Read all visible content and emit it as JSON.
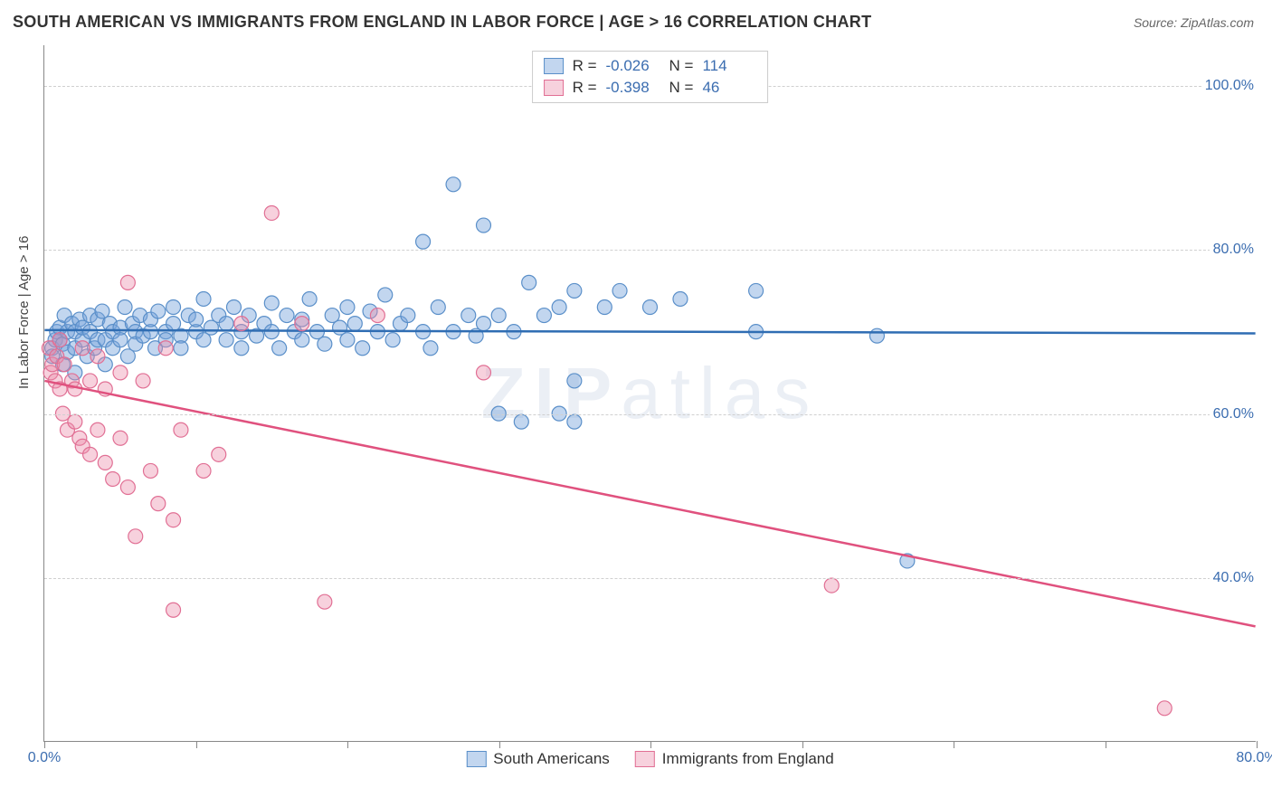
{
  "header": {
    "title": "SOUTH AMERICAN VS IMMIGRANTS FROM ENGLAND IN LABOR FORCE | AGE > 16 CORRELATION CHART",
    "source": "Source: ZipAtlas.com"
  },
  "watermark": "ZIPatlas",
  "chart": {
    "type": "scatter",
    "ylabel": "In Labor Force | Age > 16",
    "background_color": "#ffffff",
    "grid_color": "#d0d0d0",
    "axis_color": "#888888",
    "tick_label_color": "#3b6db0",
    "text_color": "#333333",
    "marker_radius": 8,
    "marker_stroke_width": 1.2,
    "line_width": 2.5,
    "xlim": [
      0,
      80
    ],
    "ylim": [
      20,
      105
    ],
    "xticks": [
      0,
      10,
      20,
      30,
      40,
      50,
      60,
      70,
      80
    ],
    "xtick_labels": {
      "0": "0.0%",
      "80": "80.0%"
    },
    "yticks": [
      40,
      60,
      80,
      100
    ],
    "ytick_labels": {
      "40": "40.0%",
      "60": "60.0%",
      "80": "80.0%",
      "100": "100.0%"
    },
    "series": [
      {
        "name": "South Americans",
        "fill_color": "rgba(120,165,220,0.45)",
        "stroke_color": "#5a8fc9",
        "line_color": "#2f6db3",
        "R": "-0.026",
        "N": "114",
        "regression": {
          "x1": 0,
          "y1": 70.2,
          "x2": 80,
          "y2": 69.8
        },
        "points": [
          [
            0.5,
            68
          ],
          [
            0.5,
            67
          ],
          [
            0.7,
            69
          ],
          [
            0.8,
            70
          ],
          [
            1,
            70.5
          ],
          [
            1,
            69
          ],
          [
            1.2,
            68.5
          ],
          [
            1.2,
            66
          ],
          [
            1.3,
            72
          ],
          [
            1.5,
            70
          ],
          [
            1.5,
            67.5
          ],
          [
            1.8,
            71
          ],
          [
            2,
            70
          ],
          [
            2,
            68
          ],
          [
            2,
            65
          ],
          [
            2.3,
            71.5
          ],
          [
            2.5,
            69
          ],
          [
            2.5,
            70.5
          ],
          [
            2.8,
            67
          ],
          [
            3,
            70
          ],
          [
            3,
            72
          ],
          [
            3.3,
            68
          ],
          [
            3.5,
            69
          ],
          [
            3.5,
            71.5
          ],
          [
            3.8,
            72.5
          ],
          [
            4,
            69
          ],
          [
            4,
            66
          ],
          [
            4.3,
            71
          ],
          [
            4.5,
            70
          ],
          [
            4.5,
            68
          ],
          [
            5,
            70.5
          ],
          [
            5,
            69
          ],
          [
            5.3,
            73
          ],
          [
            5.5,
            67
          ],
          [
            5.8,
            71
          ],
          [
            6,
            70
          ],
          [
            6,
            68.5
          ],
          [
            6.3,
            72
          ],
          [
            6.5,
            69.5
          ],
          [
            7,
            70
          ],
          [
            7,
            71.5
          ],
          [
            7.3,
            68
          ],
          [
            7.5,
            72.5
          ],
          [
            8,
            70
          ],
          [
            8,
            69
          ],
          [
            8.5,
            71
          ],
          [
            8.5,
            73
          ],
          [
            9,
            69.5
          ],
          [
            9,
            68
          ],
          [
            9.5,
            72
          ],
          [
            10,
            70
          ],
          [
            10,
            71.5
          ],
          [
            10.5,
            69
          ],
          [
            10.5,
            74
          ],
          [
            11,
            70.5
          ],
          [
            11.5,
            72
          ],
          [
            12,
            69
          ],
          [
            12,
            71
          ],
          [
            12.5,
            73
          ],
          [
            13,
            68
          ],
          [
            13,
            70
          ],
          [
            13.5,
            72
          ],
          [
            14,
            69.5
          ],
          [
            14.5,
            71
          ],
          [
            15,
            70
          ],
          [
            15,
            73.5
          ],
          [
            15.5,
            68
          ],
          [
            16,
            72
          ],
          [
            16.5,
            70
          ],
          [
            17,
            69
          ],
          [
            17,
            71.5
          ],
          [
            17.5,
            74
          ],
          [
            18,
            70
          ],
          [
            18.5,
            68.5
          ],
          [
            19,
            72
          ],
          [
            19.5,
            70.5
          ],
          [
            20,
            69
          ],
          [
            20,
            73
          ],
          [
            20.5,
            71
          ],
          [
            21,
            68
          ],
          [
            21.5,
            72.5
          ],
          [
            22,
            70
          ],
          [
            22.5,
            74.5
          ],
          [
            23,
            69
          ],
          [
            23.5,
            71
          ],
          [
            24,
            72
          ],
          [
            25,
            70
          ],
          [
            25,
            81
          ],
          [
            25.5,
            68
          ],
          [
            26,
            73
          ],
          [
            27,
            88
          ],
          [
            27,
            70
          ],
          [
            28,
            72
          ],
          [
            28.5,
            69.5
          ],
          [
            29,
            71
          ],
          [
            29,
            83
          ],
          [
            30,
            60
          ],
          [
            30,
            72
          ],
          [
            31,
            70
          ],
          [
            31.5,
            59
          ],
          [
            32,
            76
          ],
          [
            33,
            72
          ],
          [
            34,
            73
          ],
          [
            34,
            60
          ],
          [
            35,
            64
          ],
          [
            35,
            59
          ],
          [
            35,
            75
          ],
          [
            37,
            73
          ],
          [
            38,
            75
          ],
          [
            40,
            73
          ],
          [
            42,
            74
          ],
          [
            47,
            75
          ],
          [
            47,
            70
          ],
          [
            55,
            69.5
          ],
          [
            57,
            42
          ]
        ]
      },
      {
        "name": "Immigrants from England",
        "fill_color": "rgba(235,140,170,0.4)",
        "stroke_color": "#e16f94",
        "line_color": "#e0517e",
        "R": "-0.398",
        "N": "46",
        "regression": {
          "x1": 0,
          "y1": 64,
          "x2": 80,
          "y2": 34
        },
        "points": [
          [
            0.3,
            68
          ],
          [
            0.4,
            65
          ],
          [
            0.5,
            66
          ],
          [
            0.7,
            64
          ],
          [
            0.8,
            67
          ],
          [
            1,
            69
          ],
          [
            1,
            63
          ],
          [
            1.2,
            60
          ],
          [
            1.3,
            66
          ],
          [
            1.5,
            58
          ],
          [
            1.8,
            64
          ],
          [
            2,
            59
          ],
          [
            2,
            63
          ],
          [
            2.3,
            57
          ],
          [
            2.5,
            68
          ],
          [
            2.5,
            56
          ],
          [
            3,
            64
          ],
          [
            3,
            55
          ],
          [
            3.5,
            58
          ],
          [
            3.5,
            67
          ],
          [
            4,
            54
          ],
          [
            4,
            63
          ],
          [
            4.5,
            52
          ],
          [
            5,
            57
          ],
          [
            5,
            65
          ],
          [
            5.5,
            51
          ],
          [
            5.5,
            76
          ],
          [
            6,
            45
          ],
          [
            6.5,
            64
          ],
          [
            7,
            53
          ],
          [
            7.5,
            49
          ],
          [
            8,
            68
          ],
          [
            8.5,
            47
          ],
          [
            8.5,
            36
          ],
          [
            9,
            58
          ],
          [
            10.5,
            53
          ],
          [
            11.5,
            55
          ],
          [
            13,
            71
          ],
          [
            15,
            84.5
          ],
          [
            17,
            71
          ],
          [
            18.5,
            37
          ],
          [
            22,
            72
          ],
          [
            29,
            65
          ],
          [
            52,
            39
          ],
          [
            74,
            24
          ]
        ]
      }
    ],
    "legend_top": {
      "r_label": "R =",
      "n_label": "N ="
    },
    "legend_bottom": [
      "South Americans",
      "Immigrants from England"
    ]
  }
}
